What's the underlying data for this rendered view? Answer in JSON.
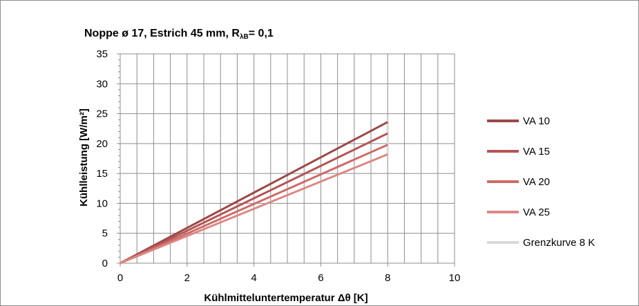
{
  "chart_data": {
    "type": "line",
    "title_main": "Noppe ø 17, Estrich 45 mm, R",
    "title_sub": "λB",
    "title_tail": "= 0,1",
    "xlabel": "Kühlmitteluntertemperatur Δθ [K]",
    "ylabel": "Kühlleistung [W/m²]",
    "xlim": [
      0,
      10
    ],
    "ylim": [
      0,
      35
    ],
    "xticks": [
      0,
      2,
      4,
      6,
      8,
      10
    ],
    "yticks": [
      0,
      5,
      10,
      15,
      20,
      25,
      30,
      35
    ],
    "grid": true,
    "legend_position": "right",
    "series": [
      {
        "name": "VA 10",
        "color": "#9b4848",
        "x": [
          0,
          8
        ],
        "y": [
          0,
          23.6
        ]
      },
      {
        "name": "VA 15",
        "color": "#b55555",
        "x": [
          0,
          8
        ],
        "y": [
          0,
          21.7
        ]
      },
      {
        "name": "VA 20",
        "color": "#cd6a68",
        "x": [
          0,
          8
        ],
        "y": [
          0,
          19.8
        ]
      },
      {
        "name": "VA 25",
        "color": "#dc8883",
        "x": [
          0,
          8
        ],
        "y": [
          0,
          18.2
        ]
      },
      {
        "name": "Grenzkurve 8 K",
        "color": "#d9d9d9",
        "x": [
          8,
          8
        ],
        "y": [
          18.2,
          24.2
        ]
      }
    ]
  }
}
